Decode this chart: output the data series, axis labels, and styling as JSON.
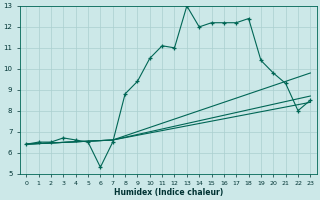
{
  "xlabel": "Humidex (Indice chaleur)",
  "background_color": "#cce8e8",
  "grid_color": "#aacfcf",
  "line_color": "#006655",
  "xlim": [
    -0.5,
    23.5
  ],
  "ylim": [
    5,
    13
  ],
  "xticks": [
    0,
    1,
    2,
    3,
    4,
    5,
    6,
    7,
    8,
    9,
    10,
    11,
    12,
    13,
    14,
    15,
    16,
    17,
    18,
    19,
    20,
    21,
    22,
    23
  ],
  "yticks": [
    5,
    6,
    7,
    8,
    9,
    10,
    11,
    12,
    13
  ],
  "line1_x": [
    0,
    1,
    2,
    3,
    4,
    5,
    6,
    7,
    8,
    9,
    10,
    11,
    12,
    13,
    14,
    15,
    16,
    17,
    18,
    19,
    20,
    21,
    22,
    23
  ],
  "line1_y": [
    6.4,
    6.5,
    6.5,
    6.7,
    6.6,
    6.5,
    5.3,
    6.5,
    8.8,
    9.4,
    10.5,
    11.1,
    11.0,
    13.0,
    12.0,
    12.2,
    12.2,
    12.2,
    12.4,
    10.4,
    9.8,
    9.3,
    8.0,
    8.5
  ],
  "line2_x": [
    0,
    7,
    23
  ],
  "line2_y": [
    6.4,
    6.6,
    9.8
  ],
  "line3_x": [
    0,
    7,
    23
  ],
  "line3_y": [
    6.4,
    6.6,
    8.7
  ],
  "line4_x": [
    0,
    7,
    23
  ],
  "line4_y": [
    6.4,
    6.6,
    8.4
  ]
}
